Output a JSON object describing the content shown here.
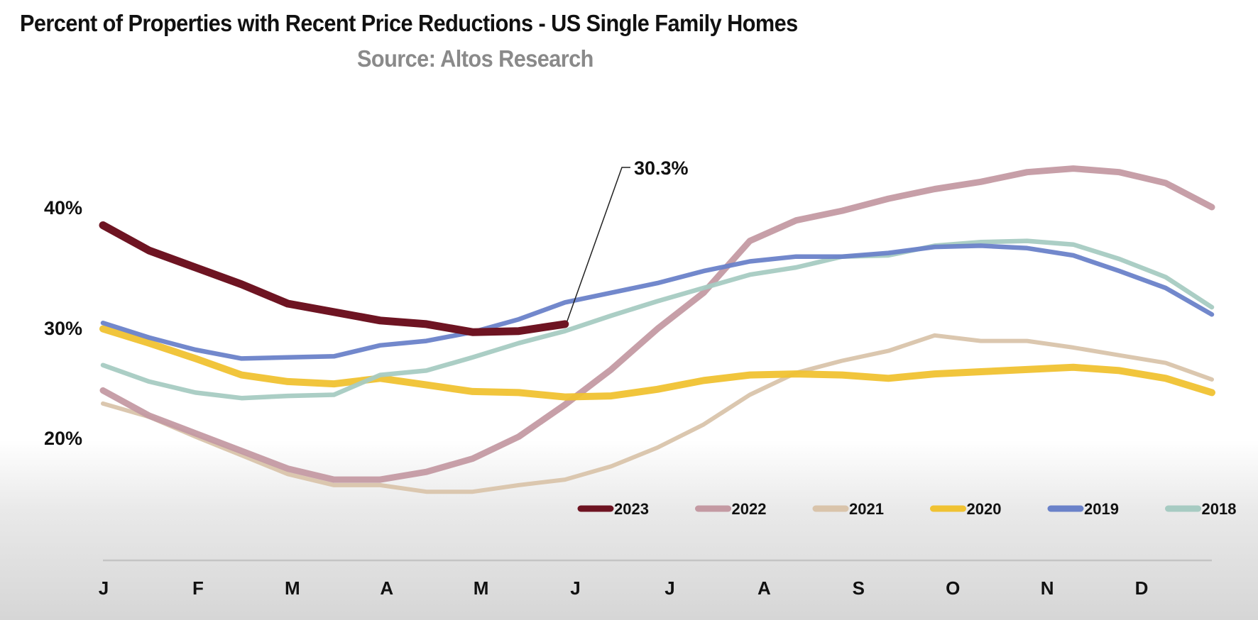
{
  "chart_data": {
    "type": "line",
    "title": "Percent of Properties with Recent Price Reductions - US Single Family Homes",
    "subtitle": "Source: Altos Research",
    "xlabel": "",
    "ylabel": "",
    "x_tick_labels": [
      "J",
      "F",
      "M",
      "A",
      "M",
      "J",
      "J",
      "A",
      "S",
      "O",
      "N",
      "D"
    ],
    "y_tick_labels": [
      "40%",
      "30%",
      "20%"
    ],
    "y_ticks": [
      40,
      30,
      20
    ],
    "ylim": [
      11,
      45
    ],
    "grid": false,
    "legend_position": "bottom-right",
    "x": [
      "Jan 1",
      "Jan 15",
      "Feb 1",
      "Feb 15",
      "Mar 1",
      "Mar 15",
      "Apr 1",
      "Apr 15",
      "May 1",
      "May 15",
      "Jun 1",
      "Jun 15",
      "Jul 1",
      "Jul 15",
      "Aug 1",
      "Aug 15",
      "Sep 1",
      "Sep 15",
      "Oct 1",
      "Oct 15",
      "Nov 1",
      "Nov 15",
      "Dec 1",
      "Dec 15",
      "Dec 31"
    ],
    "series": [
      {
        "name": "2018",
        "color": "#a7cbc2",
        "values": [
          26.6,
          25.1,
          24.1,
          23.6,
          23.8,
          23.9,
          25.7,
          26.1,
          27.3,
          28.6,
          29.7,
          31.0,
          32.2,
          33.3,
          34.4,
          35.0,
          35.9,
          36.0,
          36.8,
          37.1,
          37.2,
          36.9,
          35.7,
          34.2,
          31.7
        ]
      },
      {
        "name": "2019",
        "color": "#6a82c9",
        "values": [
          30.4,
          29.1,
          28.0,
          27.2,
          27.3,
          27.4,
          28.4,
          28.8,
          29.6,
          30.7,
          32.1,
          32.9,
          33.7,
          34.7,
          35.5,
          35.9,
          35.9,
          36.2,
          36.7,
          36.8,
          36.6,
          36.0,
          34.7,
          33.3,
          31.1
        ]
      },
      {
        "name": "2020",
        "color": "#f0c232",
        "values": [
          29.9,
          28.6,
          27.2,
          25.7,
          25.1,
          24.9,
          25.4,
          24.8,
          24.2,
          24.1,
          23.7,
          23.8,
          24.4,
          25.2,
          25.7,
          25.8,
          25.7,
          25.4,
          25.8,
          26.0,
          26.2,
          26.4,
          26.1,
          25.4,
          24.1
        ]
      },
      {
        "name": "2021",
        "color": "#d9c4ab",
        "values": [
          23.1,
          21.9,
          20.1,
          18.4,
          16.7,
          15.7,
          15.7,
          15.1,
          15.1,
          15.7,
          16.2,
          17.4,
          19.1,
          21.2,
          23.9,
          25.9,
          27.0,
          27.9,
          29.3,
          28.8,
          28.8,
          28.2,
          27.5,
          26.8,
          25.3
        ]
      },
      {
        "name": "2022",
        "color": "#c49aa3",
        "values": [
          24.3,
          22.0,
          20.4,
          18.8,
          17.2,
          16.2,
          16.2,
          16.9,
          18.1,
          20.1,
          23.0,
          26.2,
          29.9,
          32.9,
          37.2,
          38.9,
          39.7,
          40.7,
          41.5,
          42.1,
          42.9,
          43.2,
          42.9,
          42.0,
          40.0
        ]
      },
      {
        "name": "2023",
        "color": "#6e1422",
        "values": [
          38.5,
          36.4,
          35.0,
          33.6,
          32.0,
          31.3,
          30.6,
          30.3,
          29.6,
          29.7,
          30.3
        ]
      }
    ],
    "legend_order": [
      "2023",
      "2022",
      "2021",
      "2020",
      "2019",
      "2018"
    ],
    "annotations": [
      {
        "text": "30.3%",
        "series": "2023",
        "point": "Jun 1",
        "value": 30.3
      }
    ]
  }
}
